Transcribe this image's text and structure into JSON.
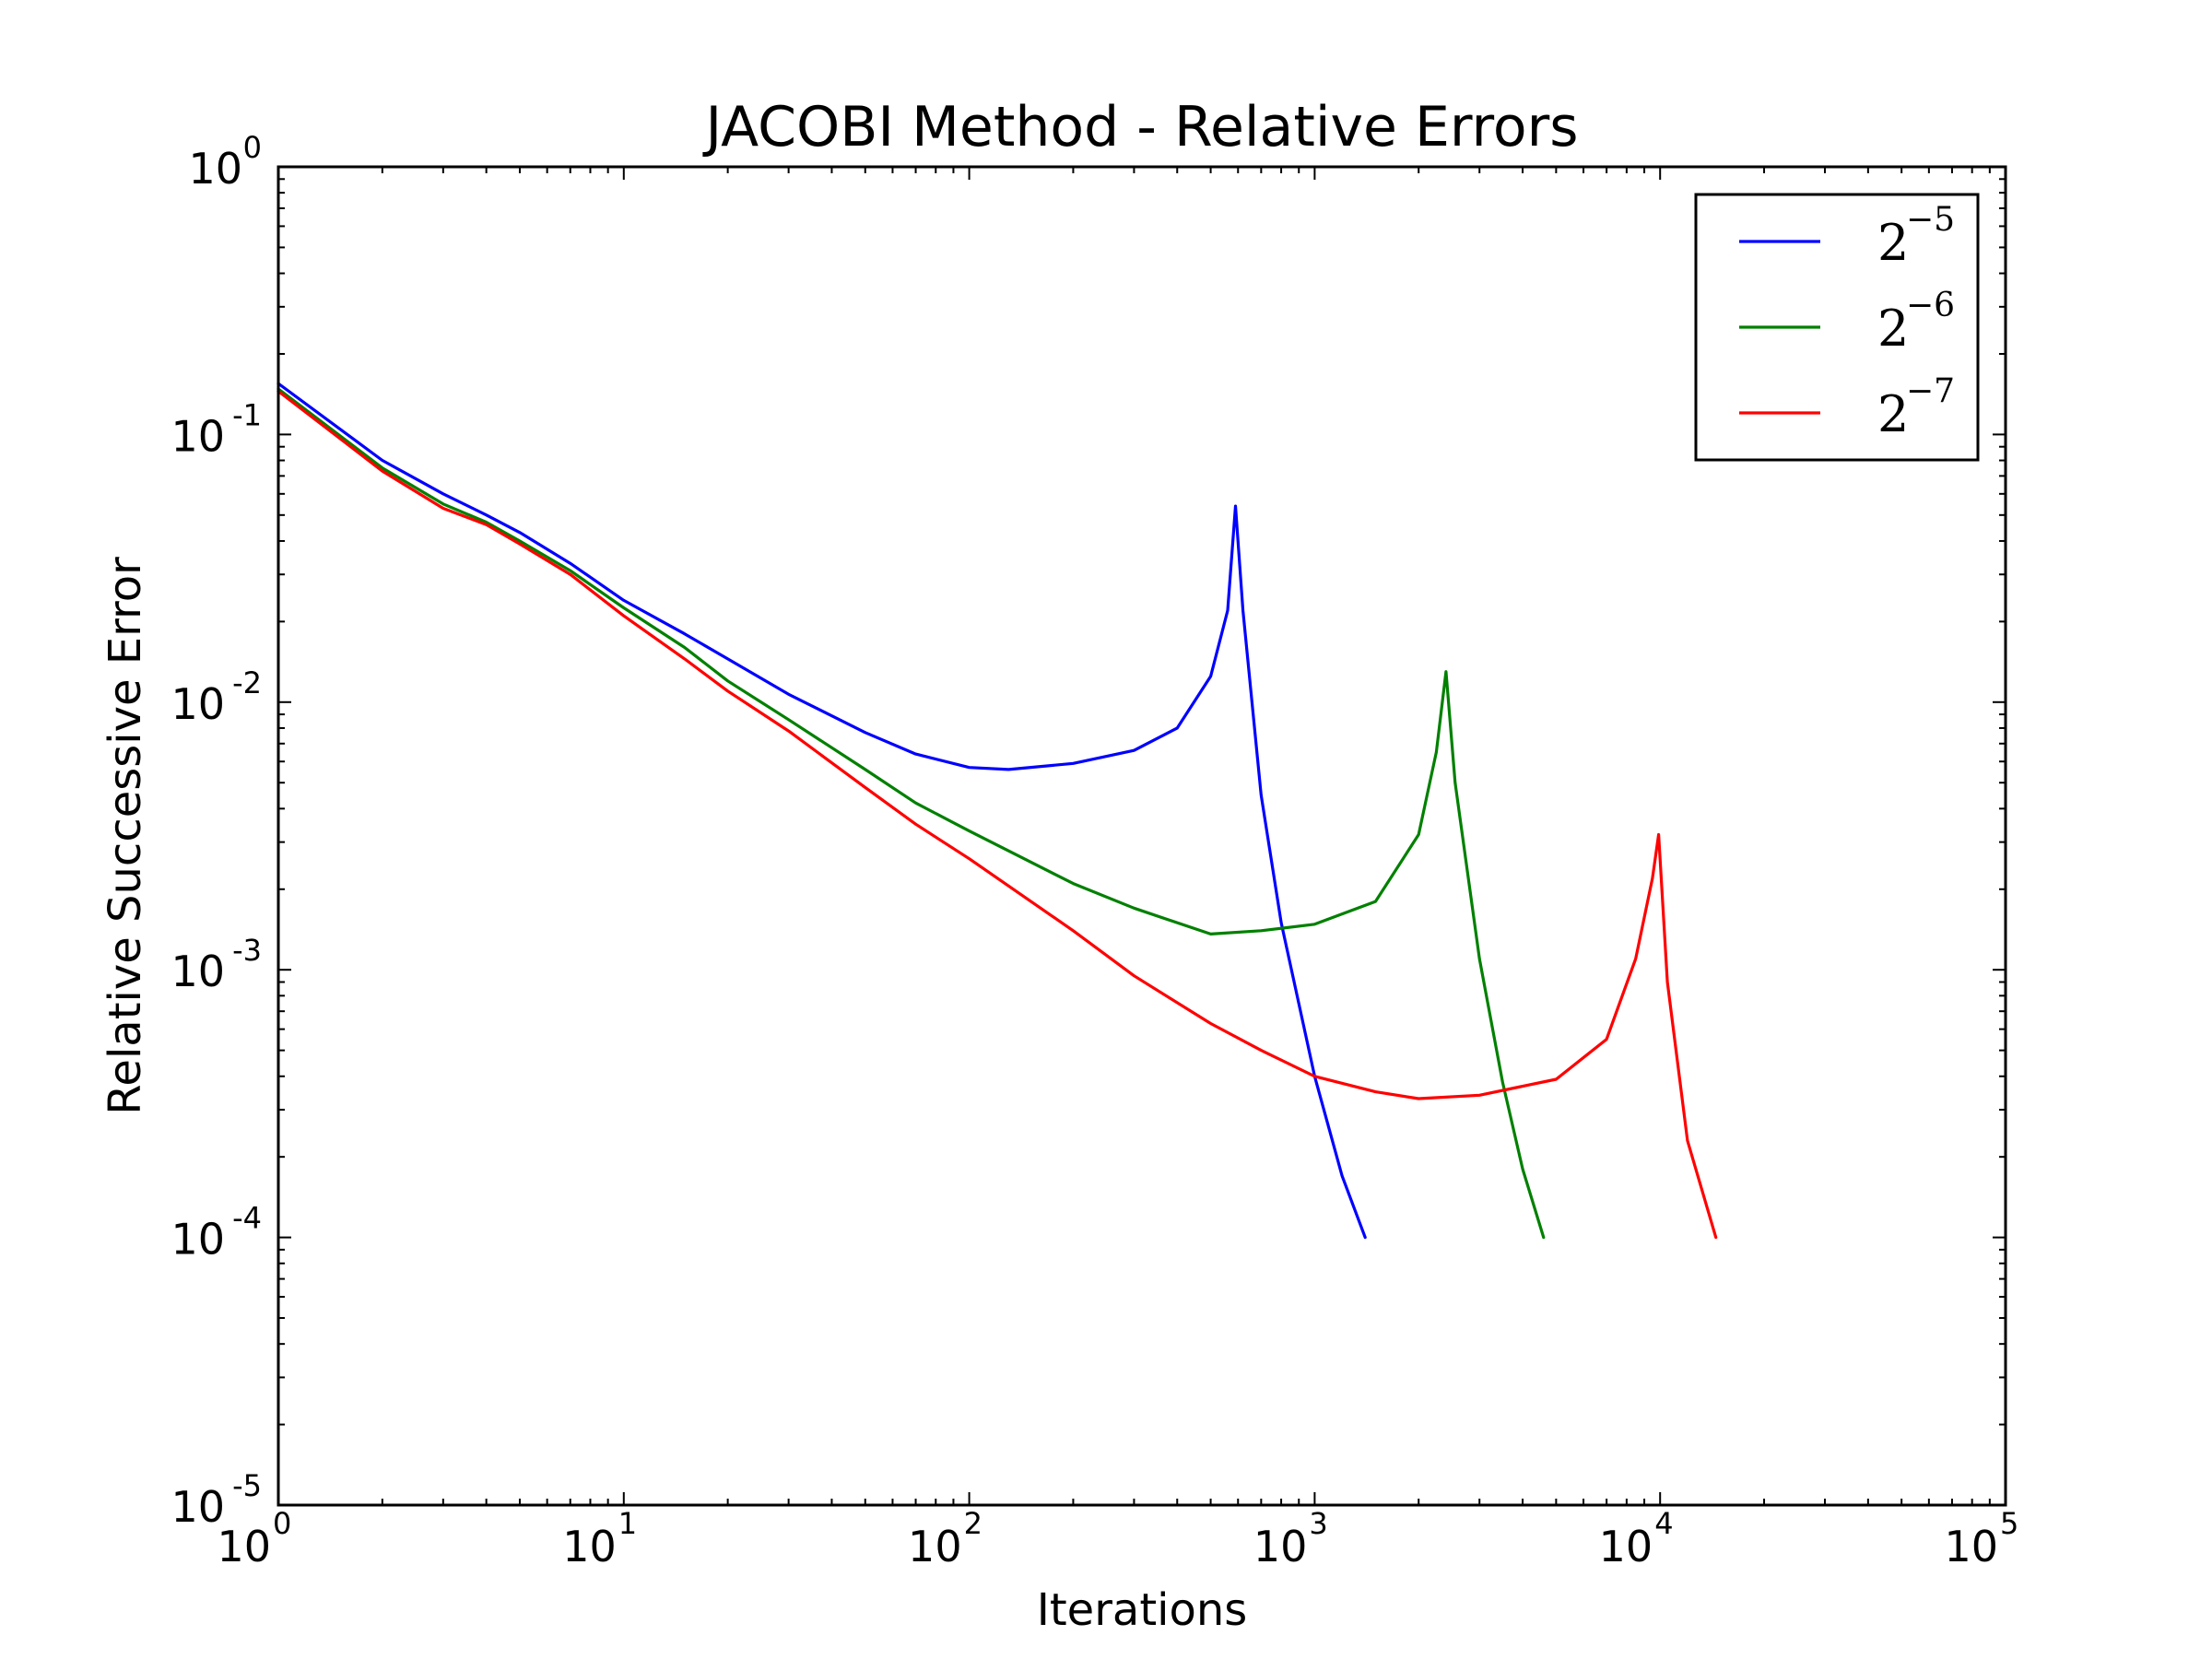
{
  "chart_data": {
    "type": "line",
    "title": "JACOBI Method - Relative Errors",
    "xlabel": "Iterations",
    "ylabel": "Relative Successive Error",
    "xscale": "log",
    "yscale": "log",
    "xlim": [
      1,
      100000
    ],
    "ylim": [
      1e-05,
      1
    ],
    "grid": false,
    "legend_position": "top-right",
    "x_ticks": [
      {
        "base": "10",
        "exp": "0"
      },
      {
        "base": "10",
        "exp": "1"
      },
      {
        "base": "10",
        "exp": "2"
      },
      {
        "base": "10",
        "exp": "3"
      },
      {
        "base": "10",
        "exp": "4"
      },
      {
        "base": "10",
        "exp": "5"
      }
    ],
    "y_ticks": [
      {
        "base": "10",
        "exp": "0"
      },
      {
        "base": "10",
        "exp": "-1"
      },
      {
        "base": "10",
        "exp": "-2"
      },
      {
        "base": "10",
        "exp": "-3"
      },
      {
        "base": "10",
        "exp": "-4"
      },
      {
        "base": "10",
        "exp": "-5"
      }
    ],
    "series": [
      {
        "name": "2^-5",
        "legend_base": "2",
        "legend_exp": "−5",
        "color": "#0000ff",
        "x": [
          1,
          2,
          3,
          4,
          5,
          7,
          10,
          15,
          20,
          30,
          50,
          70,
          100,
          130,
          200,
          300,
          400,
          500,
          560,
          590,
          620,
          700,
          800,
          1000,
          1200,
          1400
        ],
        "y": [
          0.155,
          0.08,
          0.06,
          0.05,
          0.043,
          0.033,
          0.024,
          0.018,
          0.0145,
          0.0107,
          0.0077,
          0.0064,
          0.0057,
          0.0056,
          0.0059,
          0.0066,
          0.008,
          0.0125,
          0.022,
          0.054,
          0.022,
          0.0045,
          0.0015,
          0.0004,
          0.00017,
          0.0001
        ]
      },
      {
        "name": "2^-6",
        "legend_base": "2",
        "legend_exp": "−6",
        "color": "#008000",
        "x": [
          1,
          2,
          3,
          4,
          5,
          7,
          10,
          15,
          20,
          30,
          50,
          70,
          100,
          200,
          300,
          500,
          700,
          1000,
          1500,
          2000,
          2250,
          2400,
          2550,
          3000,
          3500,
          4000,
          4600
        ],
        "y": [
          0.148,
          0.075,
          0.055,
          0.047,
          0.04,
          0.031,
          0.0225,
          0.016,
          0.012,
          0.0086,
          0.0056,
          0.0042,
          0.0033,
          0.0021,
          0.0017,
          0.00136,
          0.0014,
          0.00148,
          0.0018,
          0.0032,
          0.0065,
          0.013,
          0.005,
          0.0011,
          0.00038,
          0.00018,
          0.0001
        ]
      },
      {
        "name": "2^-7",
        "legend_base": "2",
        "legend_exp": "−7",
        "color": "#ff0000",
        "x": [
          1,
          2,
          3,
          4,
          5,
          7,
          10,
          15,
          20,
          30,
          50,
          70,
          100,
          200,
          300,
          500,
          700,
          1000,
          1500,
          2000,
          3000,
          5000,
          7000,
          8500,
          9500,
          9900,
          10500,
          12000,
          14500
        ],
        "y": [
          0.145,
          0.073,
          0.053,
          0.046,
          0.039,
          0.03,
          0.021,
          0.0145,
          0.011,
          0.0078,
          0.0048,
          0.0035,
          0.0026,
          0.0014,
          0.00095,
          0.00063,
          0.0005,
          0.0004,
          0.00035,
          0.00033,
          0.00034,
          0.00039,
          0.00055,
          0.0011,
          0.0022,
          0.0032,
          0.0009,
          0.00023,
          0.0001
        ]
      }
    ]
  }
}
